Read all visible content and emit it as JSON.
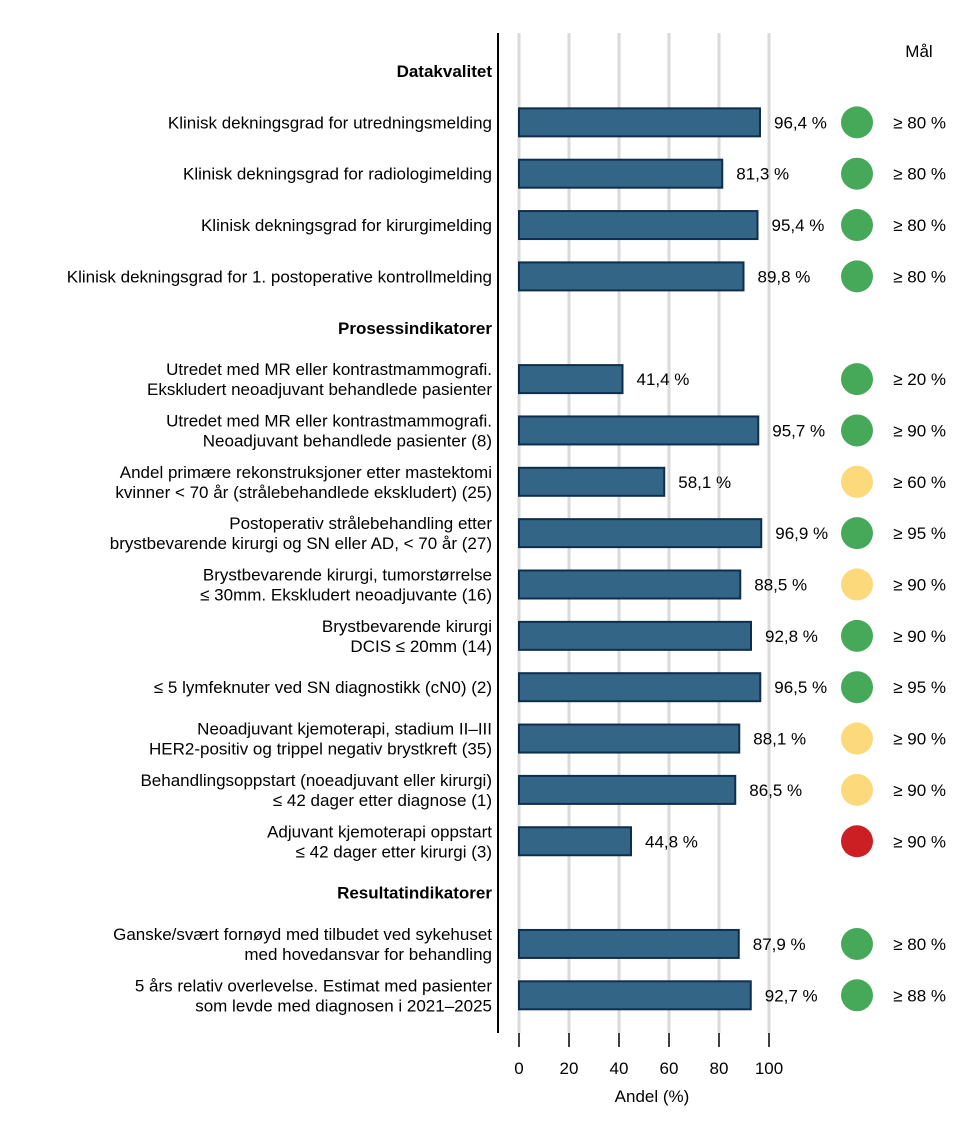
{
  "chart_data": {
    "type": "bar",
    "orientation": "horizontal",
    "xlabel": "Andel (%)",
    "xlim": [
      0,
      100
    ],
    "xticks": [
      0,
      20,
      40,
      60,
      80,
      100
    ],
    "grid": true,
    "target_header": "Mål",
    "colors": {
      "bar": "#336587",
      "bar_edge": "#0f2e4d",
      "green": "#46a95a",
      "yellow": "#fcd97a",
      "red": "#cc1f24",
      "grid": "#dadada"
    },
    "rows": [
      {
        "kind": "header",
        "label": [
          "Datakvalitet"
        ]
      },
      {
        "kind": "bar",
        "label": [
          "Klinisk dekningsgrad for utredningsmelding"
        ],
        "value": 96.4,
        "value_label": "96,4 %",
        "status": "green",
        "target": "≥ 80 %"
      },
      {
        "kind": "bar",
        "label": [
          "Klinisk dekningsgrad for radiologimelding"
        ],
        "value": 81.3,
        "value_label": "81,3 %",
        "status": "green",
        "target": "≥ 80 %"
      },
      {
        "kind": "bar",
        "label": [
          "Klinisk dekningsgrad for kirurgimelding"
        ],
        "value": 95.4,
        "value_label": "95,4 %",
        "status": "green",
        "target": "≥ 80 %"
      },
      {
        "kind": "bar",
        "label": [
          "Klinisk dekningsgrad for 1. postoperative kontrollmelding"
        ],
        "value": 89.8,
        "value_label": "89,8 %",
        "status": "green",
        "target": "≥ 80 %"
      },
      {
        "kind": "header",
        "label": [
          "Prosessindikatorer"
        ]
      },
      {
        "kind": "bar",
        "label": [
          "Utredet med MR eller kontrastmammografi.",
          "Ekskludert neoadjuvant behandlede pasienter"
        ],
        "value": 41.4,
        "value_label": "41,4 %",
        "status": "green",
        "target": "≥ 20 %"
      },
      {
        "kind": "bar",
        "label": [
          "Utredet med MR eller kontrastmammografi.",
          "Neoadjuvant behandlede pasienter (8)"
        ],
        "value": 95.7,
        "value_label": "95,7 %",
        "status": "green",
        "target": "≥ 90 %"
      },
      {
        "kind": "bar",
        "label": [
          "Andel primære rekonstruksjoner etter mastektomi",
          "kvinner < 70 år (strålebehandlede ekskludert) (25)"
        ],
        "value": 58.1,
        "value_label": "58,1 %",
        "status": "yellow",
        "target": "≥ 60 %"
      },
      {
        "kind": "bar",
        "label": [
          "Postoperativ strålebehandling etter",
          "brystbevarende kirurgi og SN eller AD, < 70 år (27)"
        ],
        "value": 96.9,
        "value_label": "96,9 %",
        "status": "green",
        "target": "≥ 95 %"
      },
      {
        "kind": "bar",
        "label": [
          "Brystbevarende kirurgi, tumorstørrelse",
          "≤ 30mm. Ekskludert neoadjuvante (16)"
        ],
        "value": 88.5,
        "value_label": "88,5 %",
        "status": "yellow",
        "target": "≥ 90 %"
      },
      {
        "kind": "bar",
        "label": [
          "Brystbevarende kirurgi",
          "DCIS ≤ 20mm (14)"
        ],
        "value": 92.8,
        "value_label": "92,8 %",
        "status": "green",
        "target": "≥ 90 %"
      },
      {
        "kind": "bar",
        "label": [
          "≤ 5 lymfeknuter ved SN diagnostikk (cN0) (2)"
        ],
        "value": 96.5,
        "value_label": "96,5 %",
        "status": "green",
        "target": "≥ 95 %"
      },
      {
        "kind": "bar",
        "label": [
          "Neoadjuvant kjemoterapi, stadium II–III",
          "HER2-positiv og trippel negativ brystkreft (35)"
        ],
        "value": 88.1,
        "value_label": "88,1 %",
        "status": "yellow",
        "target": "≥ 90 %"
      },
      {
        "kind": "bar",
        "label": [
          "Behandlingsoppstart (noeadjuvant eller kirurgi)",
          "≤ 42 dager etter diagnose (1)"
        ],
        "value": 86.5,
        "value_label": "86,5 %",
        "status": "yellow",
        "target": "≥ 90 %"
      },
      {
        "kind": "bar",
        "label": [
          "Adjuvant kjemoterapi oppstart",
          "≤ 42 dager etter kirurgi (3)"
        ],
        "value": 44.8,
        "value_label": "44,8 %",
        "status": "red",
        "target": "≥ 90 %"
      },
      {
        "kind": "header",
        "label": [
          "Resultatindikatorer"
        ]
      },
      {
        "kind": "bar",
        "label": [
          "Ganske/svært fornøyd med tilbudet ved sykehuset",
          "med hovedansvar for behandling"
        ],
        "value": 87.9,
        "value_label": "87,9 %",
        "status": "green",
        "target": "≥ 80 %"
      },
      {
        "kind": "bar",
        "label": [
          "5 års relativ overlevelse. Estimat med pasienter",
          "som levde med diagnosen i 2021–2025"
        ],
        "value": 92.7,
        "value_label": "92,7 %",
        "status": "green",
        "target": "≥ 88 %"
      }
    ]
  }
}
